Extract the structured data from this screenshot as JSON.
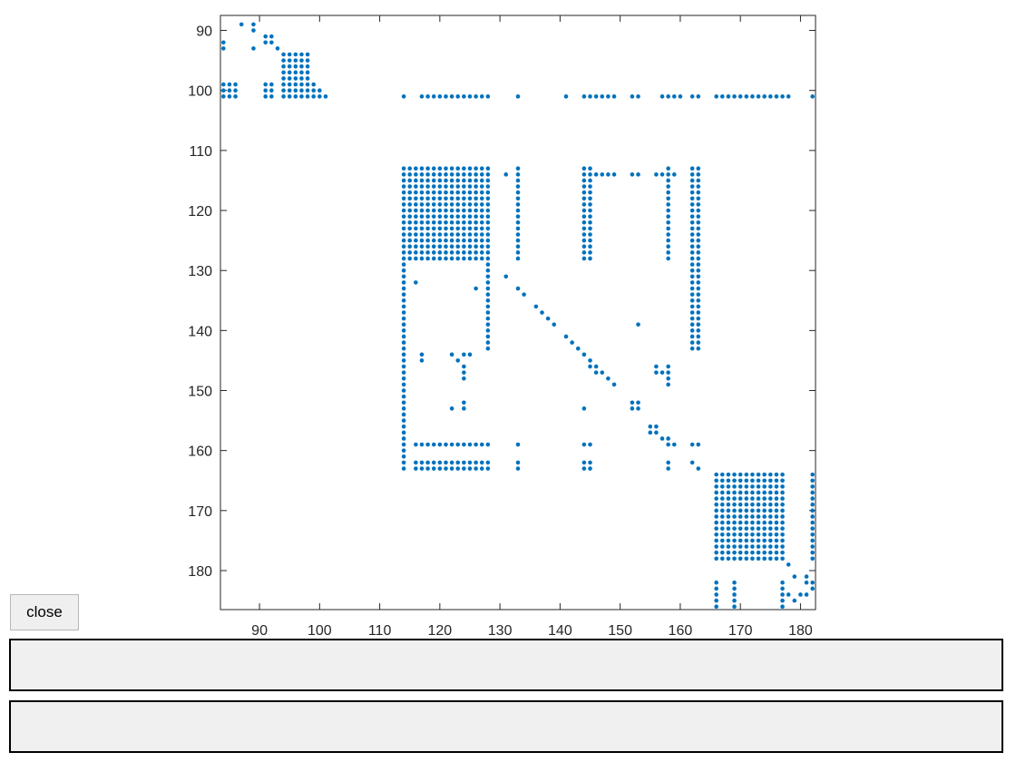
{
  "controls": {
    "close_label": "close",
    "panel1_text": "",
    "panel2_text": ""
  },
  "chart_data": {
    "type": "scatter",
    "title": "",
    "xlabel": "",
    "ylabel": "",
    "xlim": [
      83.5,
      182.5
    ],
    "ylim": [
      186.5,
      87.5
    ],
    "y_reversed": true,
    "grid": false,
    "marker_color": "#0072BD",
    "xticks": [
      90,
      100,
      110,
      120,
      130,
      140,
      150,
      160,
      170,
      180
    ],
    "yticks": [
      90,
      100,
      110,
      120,
      130,
      140,
      150,
      160,
      170,
      180
    ],
    "blocks": [
      {
        "x": [
          114,
          128
        ],
        "y": [
          113,
          128
        ]
      },
      {
        "x": [
          144,
          145
        ],
        "y": [
          113,
          128
        ]
      },
      {
        "x": [
          162,
          163
        ],
        "y": [
          113,
          143
        ]
      },
      {
        "x": [
          166,
          177
        ],
        "y": [
          164,
          178
        ]
      },
      {
        "x": [
          94,
          98
        ],
        "y": [
          94,
          101
        ]
      },
      {
        "x": [
          84,
          86
        ],
        "y": [
          99,
          101
        ]
      },
      {
        "x": [
          91,
          92
        ],
        "y": [
          99,
          101
        ]
      },
      {
        "x": [
          114,
          114
        ],
        "y": [
          129,
          163
        ]
      },
      {
        "x": [
          128,
          128
        ],
        "y": [
          129,
          143
        ]
      },
      {
        "x": [
          133,
          133
        ],
        "y": [
          113,
          128
        ]
      },
      {
        "x": [
          158,
          158
        ],
        "y": [
          113,
          128
        ]
      },
      {
        "x": [
          182,
          182
        ],
        "y": [
          164,
          178
        ]
      },
      {
        "x": [
          166,
          166
        ],
        "y": [
          182,
          186
        ]
      },
      {
        "x": [
          169,
          169
        ],
        "y": [
          182,
          186
        ]
      },
      {
        "x": [
          177,
          177
        ],
        "y": [
          182,
          186
        ]
      },
      {
        "x": [
          116,
          128
        ],
        "y": [
          159,
          159
        ]
      },
      {
        "x": [
          116,
          128
        ],
        "y": [
          162,
          163
        ]
      },
      {
        "x": [
          117,
          128
        ],
        "y": [
          101,
          101
        ]
      },
      {
        "x": [
          144,
          149
        ],
        "y": [
          101,
          101
        ]
      },
      {
        "x": [
          157,
          160
        ],
        "y": [
          101,
          101
        ]
      },
      {
        "x": [
          166,
          178
        ],
        "y": [
          101,
          101
        ]
      },
      {
        "x": [
          124,
          124
        ],
        "y": [
          146,
          148
        ]
      }
    ],
    "points": [
      [
        84,
        92
      ],
      [
        84,
        93
      ],
      [
        87,
        89
      ],
      [
        89,
        89
      ],
      [
        89,
        90
      ],
      [
        89,
        93
      ],
      [
        91,
        91
      ],
      [
        92,
        91
      ],
      [
        91,
        92
      ],
      [
        92,
        92
      ],
      [
        93,
        93
      ],
      [
        99,
        99
      ],
      [
        99,
        100
      ],
      [
        99,
        101
      ],
      [
        100,
        100
      ],
      [
        100,
        101
      ],
      [
        101,
        101
      ],
      [
        114,
        101
      ],
      [
        128,
        101
      ],
      [
        133,
        101
      ],
      [
        141,
        101
      ],
      [
        152,
        101
      ],
      [
        153,
        101
      ],
      [
        162,
        101
      ],
      [
        163,
        101
      ],
      [
        182,
        101
      ],
      [
        116,
        114
      ],
      [
        131,
        114
      ],
      [
        145,
        114
      ],
      [
        146,
        114
      ],
      [
        147,
        114
      ],
      [
        148,
        114
      ],
      [
        149,
        114
      ],
      [
        152,
        114
      ],
      [
        153,
        114
      ],
      [
        156,
        114
      ],
      [
        157,
        114
      ],
      [
        159,
        114
      ],
      [
        116,
        132
      ],
      [
        126,
        133
      ],
      [
        131,
        131
      ],
      [
        133,
        133
      ],
      [
        134,
        134
      ],
      [
        136,
        136
      ],
      [
        137,
        137
      ],
      [
        138,
        138
      ],
      [
        139,
        139
      ],
      [
        141,
        141
      ],
      [
        142,
        142
      ],
      [
        143,
        143
      ],
      [
        144,
        144
      ],
      [
        145,
        145
      ],
      [
        146,
        146
      ],
      [
        147,
        147
      ],
      [
        148,
        148
      ],
      [
        149,
        149
      ],
      [
        153,
        139
      ],
      [
        117,
        144
      ],
      [
        117,
        145
      ],
      [
        122,
        144
      ],
      [
        124,
        144
      ],
      [
        125,
        144
      ],
      [
        123,
        145
      ],
      [
        145,
        146
      ],
      [
        146,
        146
      ],
      [
        146,
        147
      ],
      [
        147,
        147
      ],
      [
        156,
        146
      ],
      [
        156,
        147
      ],
      [
        157,
        147
      ],
      [
        158,
        146
      ],
      [
        158,
        147
      ],
      [
        158,
        148
      ],
      [
        158,
        149
      ],
      [
        122,
        153
      ],
      [
        124,
        152
      ],
      [
        124,
        153
      ],
      [
        144,
        153
      ],
      [
        152,
        152
      ],
      [
        152,
        153
      ],
      [
        153,
        152
      ],
      [
        153,
        153
      ],
      [
        155,
        156
      ],
      [
        156,
        156
      ],
      [
        155,
        157
      ],
      [
        156,
        157
      ],
      [
        157,
        158
      ],
      [
        158,
        158
      ],
      [
        158,
        159
      ],
      [
        159,
        159
      ],
      [
        133,
        159
      ],
      [
        144,
        159
      ],
      [
        145,
        159
      ],
      [
        162,
        159
      ],
      [
        163,
        159
      ],
      [
        133,
        162
      ],
      [
        133,
        163
      ],
      [
        144,
        162
      ],
      [
        145,
        162
      ],
      [
        144,
        163
      ],
      [
        145,
        163
      ],
      [
        158,
        162
      ],
      [
        158,
        163
      ],
      [
        162,
        162
      ],
      [
        163,
        163
      ],
      [
        178,
        179
      ],
      [
        179,
        181
      ],
      [
        181,
        181
      ],
      [
        181,
        182
      ],
      [
        182,
        182
      ],
      [
        182,
        183
      ],
      [
        178,
        184
      ],
      [
        180,
        184
      ],
      [
        181,
        184
      ],
      [
        179,
        185
      ]
    ]
  }
}
